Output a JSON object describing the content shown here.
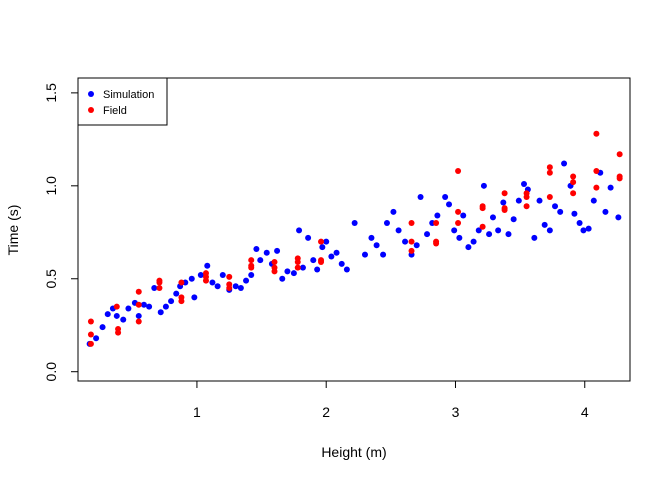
{
  "chart_data": {
    "type": "scatter",
    "title": "",
    "xlabel": "Height (m)",
    "ylabel": "Time (s)",
    "xlim": [
      0.08,
      4.35
    ],
    "ylim": [
      -0.05,
      1.58
    ],
    "xticks": [
      1,
      2,
      3,
      4
    ],
    "yticks": [
      0.0,
      0.5,
      1.0,
      1.5
    ],
    "xtick_labels": [
      "1",
      "2",
      "3",
      "4"
    ],
    "ytick_labels": [
      "0.0",
      "0.5",
      "1.0",
      "1.5"
    ],
    "grid": false,
    "legend_position": "top-left",
    "series": [
      {
        "name": "Simulation",
        "color": "#0000ff",
        "points": [
          [
            0.17,
            0.15
          ],
          [
            0.22,
            0.18
          ],
          [
            0.27,
            0.24
          ],
          [
            0.31,
            0.31
          ],
          [
            0.35,
            0.34
          ],
          [
            0.38,
            0.3
          ],
          [
            0.43,
            0.28
          ],
          [
            0.47,
            0.34
          ],
          [
            0.52,
            0.37
          ],
          [
            0.55,
            0.3
          ],
          [
            0.59,
            0.36
          ],
          [
            0.63,
            0.35
          ],
          [
            0.67,
            0.45
          ],
          [
            0.72,
            0.32
          ],
          [
            0.76,
            0.35
          ],
          [
            0.8,
            0.38
          ],
          [
            0.84,
            0.42
          ],
          [
            0.87,
            0.46
          ],
          [
            0.91,
            0.48
          ],
          [
            0.96,
            0.5
          ],
          [
            0.98,
            0.4
          ],
          [
            1.03,
            0.52
          ],
          [
            1.08,
            0.57
          ],
          [
            1.12,
            0.48
          ],
          [
            1.16,
            0.46
          ],
          [
            1.2,
            0.52
          ],
          [
            1.25,
            0.44
          ],
          [
            1.3,
            0.46
          ],
          [
            1.34,
            0.45
          ],
          [
            1.38,
            0.49
          ],
          [
            1.42,
            0.52
          ],
          [
            1.46,
            0.66
          ],
          [
            1.49,
            0.6
          ],
          [
            1.54,
            0.64
          ],
          [
            1.58,
            0.58
          ],
          [
            1.62,
            0.65
          ],
          [
            1.66,
            0.5
          ],
          [
            1.7,
            0.54
          ],
          [
            1.75,
            0.53
          ],
          [
            1.79,
            0.76
          ],
          [
            1.82,
            0.56
          ],
          [
            1.86,
            0.72
          ],
          [
            1.9,
            0.6
          ],
          [
            1.93,
            0.55
          ],
          [
            1.97,
            0.67
          ],
          [
            2.0,
            0.7
          ],
          [
            2.04,
            0.62
          ],
          [
            2.08,
            0.64
          ],
          [
            2.12,
            0.58
          ],
          [
            2.16,
            0.55
          ],
          [
            2.22,
            0.8
          ],
          [
            2.3,
            0.63
          ],
          [
            2.35,
            0.72
          ],
          [
            2.39,
            0.68
          ],
          [
            2.44,
            0.63
          ],
          [
            2.47,
            0.8
          ],
          [
            2.52,
            0.86
          ],
          [
            2.56,
            0.76
          ],
          [
            2.61,
            0.7
          ],
          [
            2.66,
            0.63
          ],
          [
            2.7,
            0.68
          ],
          [
            2.73,
            0.94
          ],
          [
            2.78,
            0.74
          ],
          [
            2.82,
            0.8
          ],
          [
            2.86,
            0.84
          ],
          [
            2.92,
            0.94
          ],
          [
            2.95,
            0.9
          ],
          [
            2.99,
            0.76
          ],
          [
            3.03,
            0.72
          ],
          [
            3.06,
            0.84
          ],
          [
            3.1,
            0.67
          ],
          [
            3.14,
            0.7
          ],
          [
            3.18,
            0.76
          ],
          [
            3.22,
            1.0
          ],
          [
            3.26,
            0.74
          ],
          [
            3.29,
            0.83
          ],
          [
            3.33,
            0.76
          ],
          [
            3.37,
            0.91
          ],
          [
            3.41,
            0.74
          ],
          [
            3.45,
            0.82
          ],
          [
            3.49,
            0.92
          ],
          [
            3.53,
            1.01
          ],
          [
            3.56,
            0.98
          ],
          [
            3.61,
            0.72
          ],
          [
            3.65,
            0.92
          ],
          [
            3.69,
            0.79
          ],
          [
            3.73,
            0.76
          ],
          [
            3.77,
            0.89
          ],
          [
            3.81,
            0.86
          ],
          [
            3.84,
            1.12
          ],
          [
            3.89,
            1.0
          ],
          [
            3.92,
            0.85
          ],
          [
            3.96,
            0.8
          ],
          [
            3.99,
            0.76
          ],
          [
            4.03,
            0.77
          ],
          [
            4.07,
            0.92
          ],
          [
            4.12,
            1.07
          ],
          [
            4.16,
            0.86
          ],
          [
            4.2,
            0.99
          ],
          [
            4.26,
            0.83
          ]
        ]
      },
      {
        "name": "Field",
        "color": "#ff0000",
        "points": [
          [
            0.18,
            0.15
          ],
          [
            0.18,
            0.2
          ],
          [
            0.18,
            0.27
          ],
          [
            0.38,
            0.35
          ],
          [
            0.39,
            0.23
          ],
          [
            0.39,
            0.21
          ],
          [
            0.55,
            0.43
          ],
          [
            0.55,
            0.27
          ],
          [
            0.55,
            0.36
          ],
          [
            0.71,
            0.48
          ],
          [
            0.71,
            0.49
          ],
          [
            0.71,
            0.45
          ],
          [
            0.88,
            0.48
          ],
          [
            0.88,
            0.38
          ],
          [
            0.88,
            0.4
          ],
          [
            1.07,
            0.49
          ],
          [
            1.07,
            0.51
          ],
          [
            1.07,
            0.53
          ],
          [
            1.25,
            0.47
          ],
          [
            1.25,
            0.45
          ],
          [
            1.25,
            0.51
          ],
          [
            1.42,
            0.57
          ],
          [
            1.42,
            0.56
          ],
          [
            1.42,
            0.6
          ],
          [
            1.6,
            0.54
          ],
          [
            1.6,
            0.59
          ],
          [
            1.6,
            0.56
          ],
          [
            1.78,
            0.56
          ],
          [
            1.78,
            0.59
          ],
          [
            1.78,
            0.61
          ],
          [
            1.96,
            0.59
          ],
          [
            1.96,
            0.6
          ],
          [
            1.96,
            0.7
          ],
          [
            2.66,
            0.8
          ],
          [
            2.66,
            0.7
          ],
          [
            2.66,
            0.65
          ],
          [
            2.85,
            0.8
          ],
          [
            2.85,
            0.7
          ],
          [
            2.85,
            0.69
          ],
          [
            3.02,
            0.86
          ],
          [
            3.02,
            0.8
          ],
          [
            3.02,
            1.08
          ],
          [
            3.21,
            0.78
          ],
          [
            3.21,
            0.88
          ],
          [
            3.21,
            0.89
          ],
          [
            3.38,
            0.87
          ],
          [
            3.38,
            0.96
          ],
          [
            3.38,
            0.88
          ],
          [
            3.55,
            0.94
          ],
          [
            3.55,
            0.89
          ],
          [
            3.55,
            0.96
          ],
          [
            3.73,
            1.07
          ],
          [
            3.73,
            1.1
          ],
          [
            3.73,
            0.94
          ],
          [
            3.91,
            0.96
          ],
          [
            3.91,
            1.02
          ],
          [
            3.91,
            1.05
          ],
          [
            4.09,
            1.28
          ],
          [
            4.09,
            1.08
          ],
          [
            4.09,
            0.99
          ],
          [
            4.27,
            1.05
          ],
          [
            4.27,
            1.17
          ],
          [
            4.27,
            1.04
          ]
        ]
      }
    ]
  }
}
